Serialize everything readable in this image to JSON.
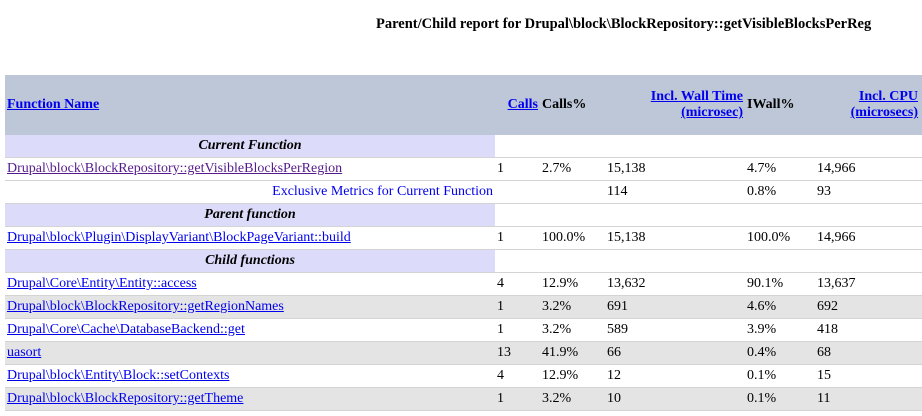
{
  "header": {
    "title": "Parent/Child report for Drupal\\block\\BlockRepository::getVisibleBlocksPerReg"
  },
  "table": {
    "columns": [
      {
        "lines": [
          "Function Name"
        ],
        "link": true
      },
      {
        "lines": [
          "Calls"
        ],
        "link": true
      },
      {
        "lines": [
          "Calls%"
        ],
        "link": false
      },
      {
        "lines": [
          "Incl. Wall Time",
          "(microsec)"
        ],
        "link": true
      },
      {
        "lines": [
          "IWall%"
        ],
        "link": false
      },
      {
        "lines": [
          "Incl. CPU",
          "(microsecs)"
        ],
        "link": true
      }
    ],
    "sections": [
      {
        "title": "Current Function",
        "rows": [
          {
            "cells": [
              "Drupal\\block\\BlockRepository::getVisibleBlocksPerRegion",
              "1",
              "2.7%",
              "15,138",
              "4.7%",
              "14,966"
            ],
            "visited": true
          },
          {
            "label": "Exclusive Metrics for Current Function",
            "metrics": [
              "114",
              "0.8%",
              "93"
            ]
          }
        ]
      },
      {
        "title": "Parent function",
        "rows": [
          {
            "cells": [
              "Drupal\\block\\Plugin\\DisplayVariant\\BlockPageVariant::build",
              "1",
              "100.0%",
              "15,138",
              "100.0%",
              "14,966"
            ]
          }
        ]
      },
      {
        "title": "Child functions",
        "rows": [
          {
            "cells": [
              "Drupal\\Core\\Entity\\Entity::access",
              "4",
              "12.9%",
              "13,632",
              "90.1%",
              "13,637"
            ]
          },
          {
            "cells": [
              "Drupal\\block\\BlockRepository::getRegionNames",
              "1",
              "3.2%",
              "691",
              "4.6%",
              "692"
            ]
          },
          {
            "cells": [
              "Drupal\\Core\\Cache\\DatabaseBackend::get",
              "1",
              "3.2%",
              "589",
              "3.9%",
              "418"
            ]
          },
          {
            "cells": [
              "uasort",
              "13",
              "41.9%",
              "66",
              "0.4%",
              "68"
            ]
          },
          {
            "cells": [
              "Drupal\\block\\Entity\\Block::setContexts",
              "4",
              "12.9%",
              "12",
              "0.1%",
              "15"
            ]
          },
          {
            "cells": [
              "Drupal\\block\\BlockRepository::getTheme",
              "1",
              "3.2%",
              "10",
              "0.1%",
              "11"
            ]
          }
        ]
      }
    ]
  }
}
